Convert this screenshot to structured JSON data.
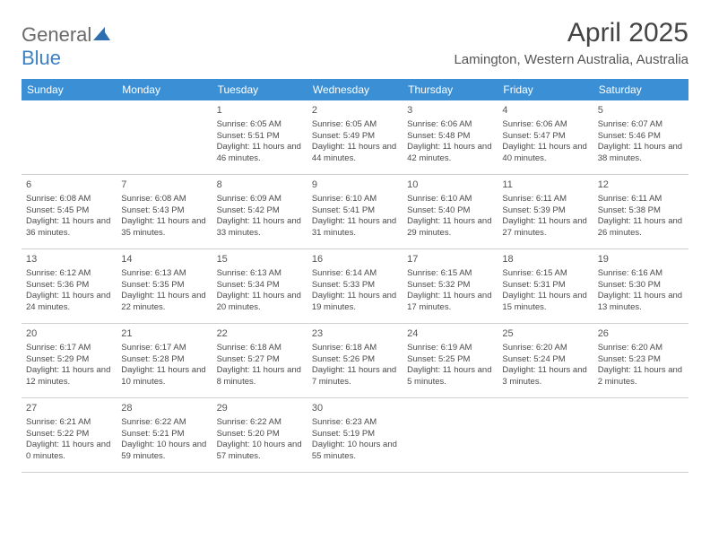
{
  "logo": {
    "part1": "General",
    "part2": "Blue"
  },
  "title": "April 2025",
  "location": "Lamington, Western Australia, Australia",
  "header_color": "#3b8fd4",
  "text_color": "#4a4a4a",
  "dayNames": [
    "Sunday",
    "Monday",
    "Tuesday",
    "Wednesday",
    "Thursday",
    "Friday",
    "Saturday"
  ],
  "weeks": [
    [
      null,
      null,
      {
        "n": "1",
        "sr": "6:05 AM",
        "ss": "5:51 PM",
        "dl": "11 hours and 46 minutes."
      },
      {
        "n": "2",
        "sr": "6:05 AM",
        "ss": "5:49 PM",
        "dl": "11 hours and 44 minutes."
      },
      {
        "n": "3",
        "sr": "6:06 AM",
        "ss": "5:48 PM",
        "dl": "11 hours and 42 minutes."
      },
      {
        "n": "4",
        "sr": "6:06 AM",
        "ss": "5:47 PM",
        "dl": "11 hours and 40 minutes."
      },
      {
        "n": "5",
        "sr": "6:07 AM",
        "ss": "5:46 PM",
        "dl": "11 hours and 38 minutes."
      }
    ],
    [
      {
        "n": "6",
        "sr": "6:08 AM",
        "ss": "5:45 PM",
        "dl": "11 hours and 36 minutes."
      },
      {
        "n": "7",
        "sr": "6:08 AM",
        "ss": "5:43 PM",
        "dl": "11 hours and 35 minutes."
      },
      {
        "n": "8",
        "sr": "6:09 AM",
        "ss": "5:42 PM",
        "dl": "11 hours and 33 minutes."
      },
      {
        "n": "9",
        "sr": "6:10 AM",
        "ss": "5:41 PM",
        "dl": "11 hours and 31 minutes."
      },
      {
        "n": "10",
        "sr": "6:10 AM",
        "ss": "5:40 PM",
        "dl": "11 hours and 29 minutes."
      },
      {
        "n": "11",
        "sr": "6:11 AM",
        "ss": "5:39 PM",
        "dl": "11 hours and 27 minutes."
      },
      {
        "n": "12",
        "sr": "6:11 AM",
        "ss": "5:38 PM",
        "dl": "11 hours and 26 minutes."
      }
    ],
    [
      {
        "n": "13",
        "sr": "6:12 AM",
        "ss": "5:36 PM",
        "dl": "11 hours and 24 minutes."
      },
      {
        "n": "14",
        "sr": "6:13 AM",
        "ss": "5:35 PM",
        "dl": "11 hours and 22 minutes."
      },
      {
        "n": "15",
        "sr": "6:13 AM",
        "ss": "5:34 PM",
        "dl": "11 hours and 20 minutes."
      },
      {
        "n": "16",
        "sr": "6:14 AM",
        "ss": "5:33 PM",
        "dl": "11 hours and 19 minutes."
      },
      {
        "n": "17",
        "sr": "6:15 AM",
        "ss": "5:32 PM",
        "dl": "11 hours and 17 minutes."
      },
      {
        "n": "18",
        "sr": "6:15 AM",
        "ss": "5:31 PM",
        "dl": "11 hours and 15 minutes."
      },
      {
        "n": "19",
        "sr": "6:16 AM",
        "ss": "5:30 PM",
        "dl": "11 hours and 13 minutes."
      }
    ],
    [
      {
        "n": "20",
        "sr": "6:17 AM",
        "ss": "5:29 PM",
        "dl": "11 hours and 12 minutes."
      },
      {
        "n": "21",
        "sr": "6:17 AM",
        "ss": "5:28 PM",
        "dl": "11 hours and 10 minutes."
      },
      {
        "n": "22",
        "sr": "6:18 AM",
        "ss": "5:27 PM",
        "dl": "11 hours and 8 minutes."
      },
      {
        "n": "23",
        "sr": "6:18 AM",
        "ss": "5:26 PM",
        "dl": "11 hours and 7 minutes."
      },
      {
        "n": "24",
        "sr": "6:19 AM",
        "ss": "5:25 PM",
        "dl": "11 hours and 5 minutes."
      },
      {
        "n": "25",
        "sr": "6:20 AM",
        "ss": "5:24 PM",
        "dl": "11 hours and 3 minutes."
      },
      {
        "n": "26",
        "sr": "6:20 AM",
        "ss": "5:23 PM",
        "dl": "11 hours and 2 minutes."
      }
    ],
    [
      {
        "n": "27",
        "sr": "6:21 AM",
        "ss": "5:22 PM",
        "dl": "11 hours and 0 minutes."
      },
      {
        "n": "28",
        "sr": "6:22 AM",
        "ss": "5:21 PM",
        "dl": "10 hours and 59 minutes."
      },
      {
        "n": "29",
        "sr": "6:22 AM",
        "ss": "5:20 PM",
        "dl": "10 hours and 57 minutes."
      },
      {
        "n": "30",
        "sr": "6:23 AM",
        "ss": "5:19 PM",
        "dl": "10 hours and 55 minutes."
      },
      null,
      null,
      null
    ]
  ],
  "labels": {
    "sunrise": "Sunrise:",
    "sunset": "Sunset:",
    "daylight": "Daylight:"
  }
}
